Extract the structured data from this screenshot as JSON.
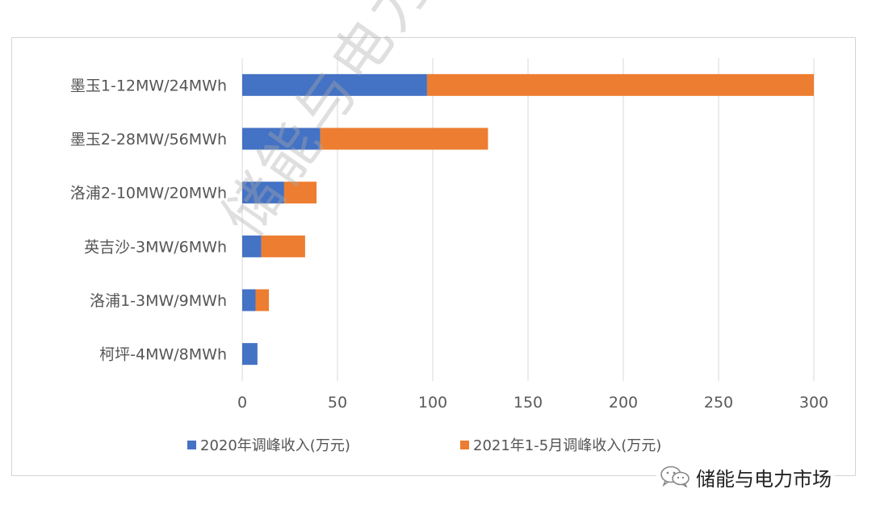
{
  "watermark": "储能与电力市场",
  "brand": {
    "name": "储能与电力市场",
    "icon": "wechat-icon"
  },
  "colors": {
    "series1": "#4472C4",
    "series2": "#ED7D31",
    "grid": "#d9d9d9"
  },
  "chart_data": {
    "type": "bar",
    "orientation": "horizontal",
    "stacked": true,
    "categories": [
      "墨玉1-12MW/24MWh",
      "墨玉2-28MW/56MWh",
      "洛浦2-10MW/20MWh",
      "英吉沙-3MW/6MWh",
      "洛浦1-3MW/9MWh",
      "柯坪-4MW/8MWh"
    ],
    "series": [
      {
        "name": "2020年调峰收入(万元)",
        "values": [
          97,
          41,
          22,
          10,
          7,
          8
        ]
      },
      {
        "name": "2021年1-5月调峰收入(万元)",
        "values": [
          203,
          88,
          17,
          23,
          7,
          0
        ]
      }
    ],
    "xlim": [
      0,
      300
    ],
    "xticks": [
      0,
      50,
      100,
      150,
      200,
      250,
      300
    ],
    "grid": true,
    "legend": "bottom"
  }
}
